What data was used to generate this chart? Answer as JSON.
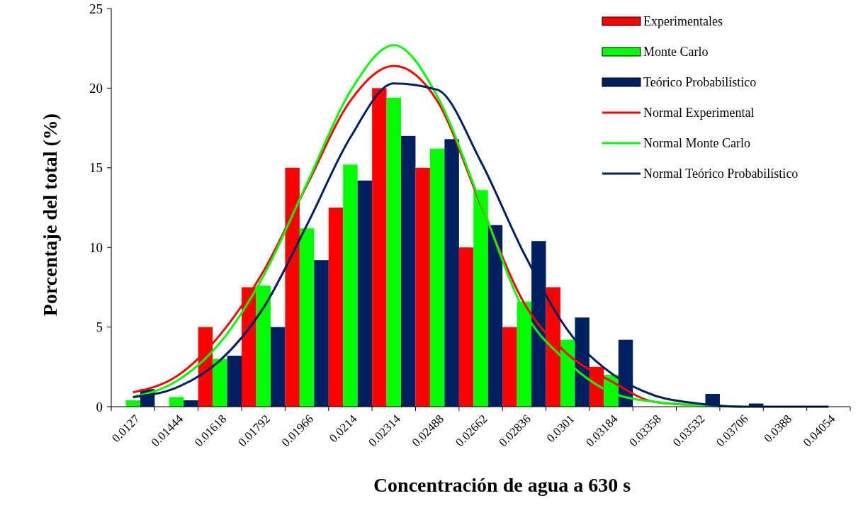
{
  "chart_data": {
    "type": "bar",
    "xlabel": "Concentración de agua a 630 s",
    "ylabel": "Porcentaje del total (%)",
    "categories": [
      "0.0127",
      "0.01444",
      "0.01618",
      "0.01792",
      "0.01966",
      "0.0214",
      "0.02314",
      "0.02488",
      "0.02662",
      "0.02836",
      "0.0301",
      "0.03184",
      "0.03358",
      "0.03532",
      "0.03706",
      "0.0388",
      "0.04054"
    ],
    "series": [
      {
        "name": "Experimentales",
        "color": "#ff0000",
        "values": [
          0,
          0,
          5,
          7.5,
          15,
          12.5,
          20,
          15,
          10,
          5,
          7.5,
          2.5,
          0,
          0,
          0,
          0,
          0
        ]
      },
      {
        "name": "Monte Carlo",
        "color": "#00ff00",
        "values": [
          0.4,
          0.6,
          3,
          7.6,
          11.2,
          15.2,
          19.4,
          16.2,
          13.6,
          6.6,
          4.2,
          2,
          0,
          0,
          0,
          0,
          0
        ]
      },
      {
        "name": "Teórico Probabilístico",
        "color": "#002060",
        "values": [
          1.1,
          0.4,
          3.2,
          5,
          9.2,
          14.2,
          17,
          16.8,
          11.4,
          10.4,
          5.6,
          4.2,
          0,
          0.8,
          0.2,
          0,
          0
        ]
      },
      {
        "name": "Normal Experimental",
        "type": "line",
        "color": "#ff0000",
        "values": [
          0.9,
          1.9,
          4.5,
          8.5,
          13.9,
          19.2,
          21.4,
          19.2,
          12.7,
          6.5,
          3.3,
          1.6,
          0.3,
          0.1,
          null,
          null,
          null
        ]
      },
      {
        "name": "Normal Monte Carlo",
        "type": "line",
        "color": "#00ff00",
        "values": [
          0.6,
          1.6,
          4,
          8.2,
          14,
          19.8,
          22.7,
          19.5,
          12.8,
          6,
          2.8,
          0.9,
          0.3,
          0.1,
          0,
          null,
          null
        ]
      },
      {
        "name": "Normal Teórico Probabilístico",
        "type": "line",
        "color": "#002060",
        "values": [
          0.6,
          1.2,
          2.9,
          6.2,
          11.4,
          16.9,
          20.3,
          19.9,
          15.4,
          9.6,
          4.8,
          2.1,
          0.7,
          0.2,
          0,
          0,
          0
        ]
      }
    ],
    "ylim": [
      0,
      25
    ],
    "yticks": [
      0,
      5,
      10,
      15,
      20,
      25
    ],
    "grid": false,
    "legend": "top right",
    "marker": "none"
  }
}
